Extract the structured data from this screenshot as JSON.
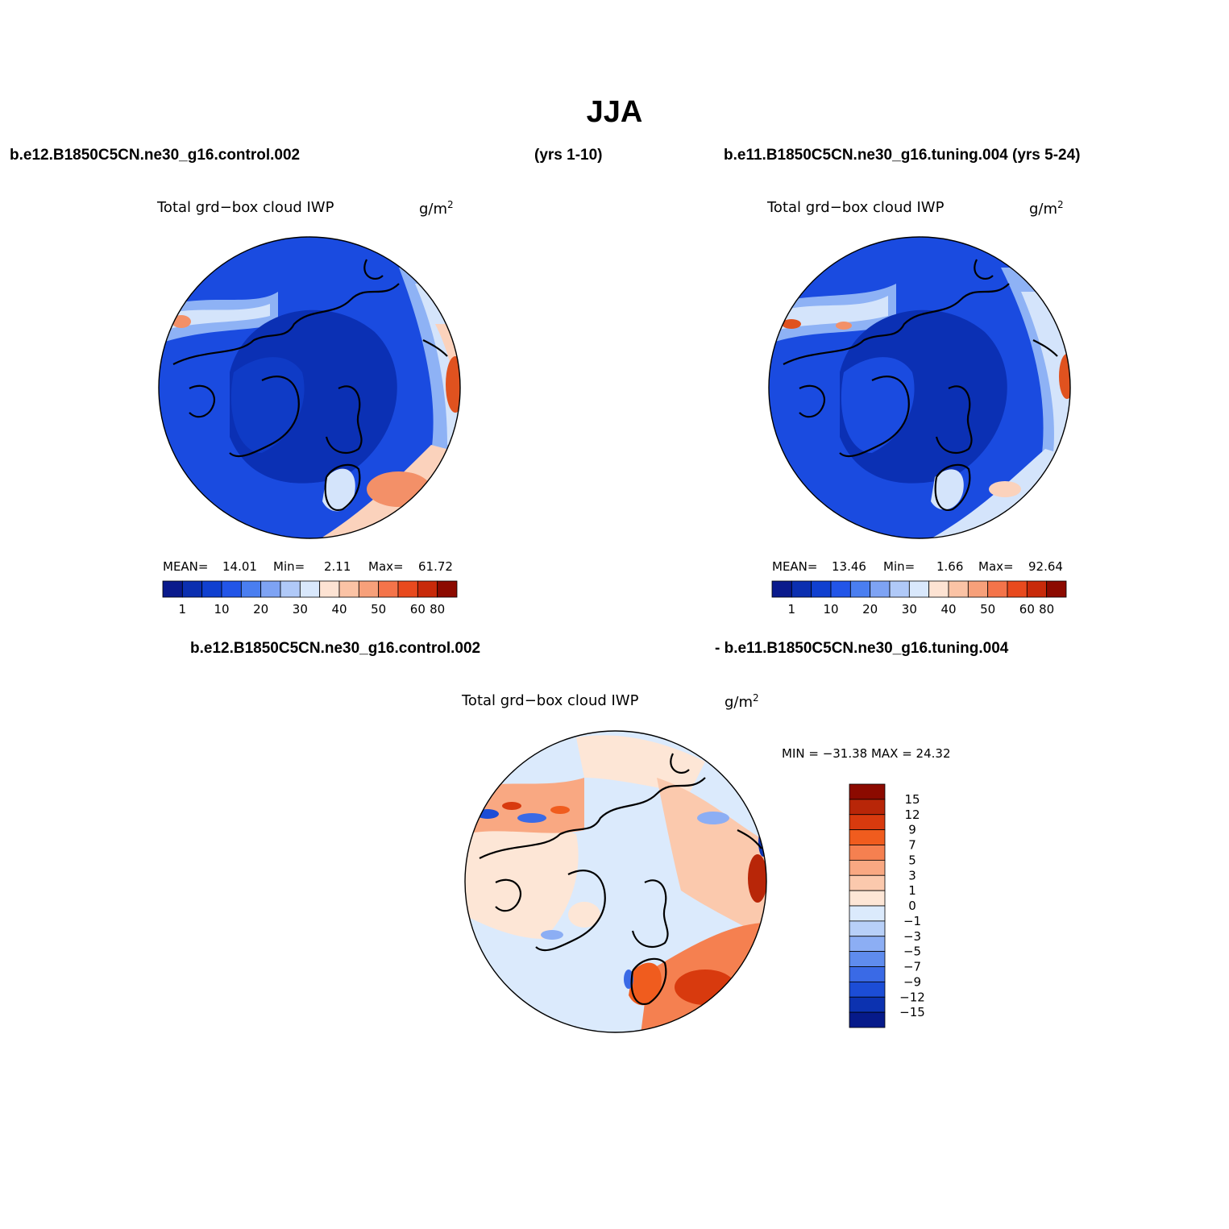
{
  "main_title": "JJA",
  "headers": {
    "left_case": "b.e12.B1850C5CN.ne30_g16.control.002",
    "left_years": "(yrs 1-10)",
    "right_case": "b.e11.B1850C5CN.ne30_g16.tuning.004 (yrs 5-24)",
    "diff_left": "b.e12.B1850C5CN.ne30_g16.control.002",
    "diff_right": "- b.e11.B1850C5CN.ne30_g16.tuning.004"
  },
  "panels": {
    "top_left": {
      "variable": "Total grd−box cloud IWP",
      "units": "g/m",
      "units_sup": "2",
      "mean_label": "MEAN=",
      "mean": "14.01",
      "min_label": "Min=",
      "min": "2.11",
      "max_label": "Max=",
      "max": "61.72"
    },
    "top_right": {
      "variable": "Total grd−box cloud IWP",
      "units": "g/m",
      "units_sup": "2",
      "mean_label": "MEAN=",
      "mean": "13.46",
      "min_label": "Min=",
      "min": "1.66",
      "max_label": "Max=",
      "max": "92.64"
    },
    "difference": {
      "variable": "Total grd−box cloud IWP",
      "units": "g/m",
      "units_sup": "2",
      "minmax_text": "MIN = −31.38 MAX =  24.32"
    }
  },
  "colorbars": {
    "absolute": {
      "colors": [
        "#0a1a8c",
        "#0b2fb0",
        "#1040d0",
        "#2255e8",
        "#4a7ef0",
        "#7ea3f4",
        "#b0c9f8",
        "#d9e8fc",
        "#fde3d3",
        "#fbc3a5",
        "#f7a07a",
        "#f4744a",
        "#e84a1e",
        "#c82a0a",
        "#8c0a00"
      ],
      "tick_labels": [
        "1",
        "10",
        "20",
        "30",
        "40",
        "50",
        "60",
        "80"
      ]
    },
    "difference": {
      "colors": [
        "#8c0a00",
        "#b82608",
        "#d83a0e",
        "#f05c1e",
        "#f58050",
        "#f9a882",
        "#fbc9ad",
        "#fde6d6",
        "#dbeafc",
        "#b8d0f8",
        "#8caef4",
        "#5f8cee",
        "#3a6ae6",
        "#1c4dd6",
        "#0c32b0",
        "#061a8a"
      ],
      "tick_labels": [
        "15",
        "12",
        "9",
        "7",
        "5",
        "3",
        "1",
        "0",
        "−1",
        "−3",
        "−5",
        "−7",
        "−9",
        "−12",
        "−15"
      ]
    }
  },
  "map_colors": {
    "deep_blue": "#0b30b4",
    "blue": "#1a4be0",
    "mid_blue": "#2f63ea",
    "light_blue": "#8eb2f5",
    "pale_blue": "#d4e4fb",
    "peach": "#fbd2bc",
    "orange": "#f39068",
    "red": "#e0521f",
    "coast": "#000000"
  }
}
